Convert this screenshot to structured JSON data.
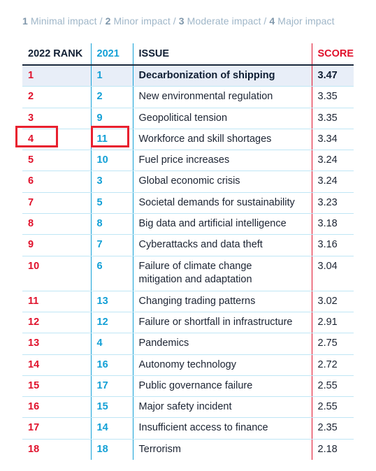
{
  "legend": {
    "n1": "1",
    "t1": " Minimal impact / ",
    "n2": "2",
    "t2": " Minor impact / ",
    "n3": "3",
    "t3": " Moderate impact / ",
    "n4": "4",
    "t4": " Major impact"
  },
  "headers": {
    "rank": "2022 RANK",
    "prev": "2021",
    "issue": "ISSUE",
    "score": "SCORE"
  },
  "rows": [
    {
      "rank": "1",
      "prev": "1",
      "issue": "Decarbonization of shipping",
      "score": "3.47"
    },
    {
      "rank": "2",
      "prev": "2",
      "issue": "New environmental regulation",
      "score": "3.35"
    },
    {
      "rank": "3",
      "prev": "9",
      "issue": "Geopolitical tension",
      "score": "3.35"
    },
    {
      "rank": "4",
      "prev": "11",
      "issue": "Workforce and skill shortages",
      "score": "3.34"
    },
    {
      "rank": "5",
      "prev": "10",
      "issue": "Fuel price increases",
      "score": "3.24"
    },
    {
      "rank": "6",
      "prev": "3",
      "issue": "Global economic crisis",
      "score": "3.24"
    },
    {
      "rank": "7",
      "prev": "5",
      "issue": "Societal demands for sustainability",
      "score": "3.23"
    },
    {
      "rank": "8",
      "prev": "8",
      "issue": "Big data and artificial intelligence",
      "score": "3.18"
    },
    {
      "rank": "9",
      "prev": "7",
      "issue": "Cyberattacks and data theft",
      "score": "3.16"
    },
    {
      "rank": "10",
      "prev": "6",
      "issue_l1": "Failure of climate change",
      "issue_l2": "mitigation and adaptation",
      "score": "3.04"
    },
    {
      "rank": "11",
      "prev": "13",
      "issue": "Changing trading patterns",
      "score": "3.02"
    },
    {
      "rank": "12",
      "prev": "12",
      "issue": "Failure or shortfall in infrastructure",
      "score": "2.91"
    },
    {
      "rank": "13",
      "prev": "4",
      "issue": "Pandemics",
      "score": "2.75"
    },
    {
      "rank": "14",
      "prev": "16",
      "issue": "Autonomy technology",
      "score": "2.72"
    },
    {
      "rank": "15",
      "prev": "17",
      "issue": "Public governance failure",
      "score": "2.55"
    },
    {
      "rank": "16",
      "prev": "15",
      "issue": "Major safety incident",
      "score": "2.55"
    },
    {
      "rank": "17",
      "prev": "14",
      "issue": "Insufficient access to finance",
      "score": "2.35"
    },
    {
      "rank": "18",
      "prev": "18",
      "issue": "Terrorism",
      "score": "2.18"
    }
  ],
  "highlight_color": "#e8202f"
}
